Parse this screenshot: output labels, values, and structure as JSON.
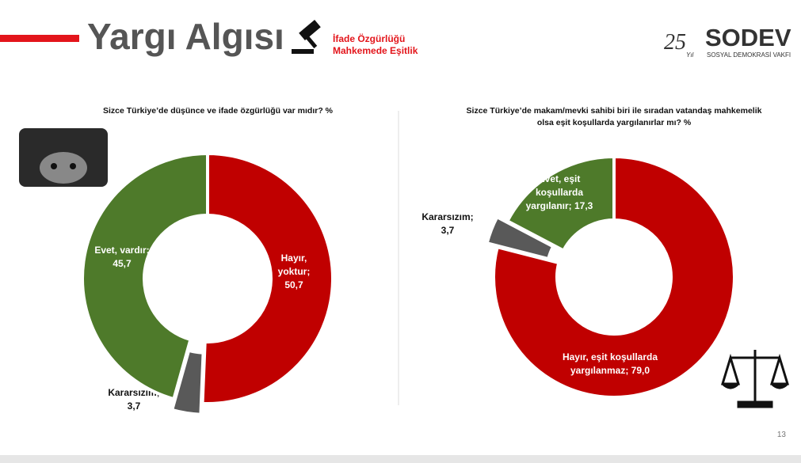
{
  "header": {
    "title": "Yargı Algısı",
    "tag1": "İfade Özgürlüğü",
    "tag2": "Mahkemede Eşitlik",
    "logo_years": "25",
    "logo_yil": "Yıl",
    "logo_name": "SODEV",
    "logo_sub": "SOSYAL DEMOKRASİ VAKFI",
    "page": "13"
  },
  "chart_data": [
    {
      "type": "pie",
      "title": "Sizce Türkiye’de düşünce ve ifade özgürlüğü var mıdır? %",
      "categories": [
        "Hayır, yoktur;",
        "Kararsızım;",
        "Evet, vardır;"
      ],
      "values": [
        50.7,
        3.7,
        45.7
      ],
      "value_labels": [
        "50,7",
        "3,7",
        "45,7"
      ],
      "colors": [
        "#c00000",
        "#595959",
        "#4e7a2a"
      ]
    },
    {
      "type": "pie",
      "title": "Sizce Türkiye’de makam/mevki sahibi biri ile sıradan vatandaş mahkemelik olsa eşit koşullarda yargılanırlar mı? %",
      "categories": [
        "Hayır, eşit koşullarda yargılanmaz;",
        "Kararsızım;",
        "Evet, eşit koşullarda yargılanır;"
      ],
      "values": [
        79.0,
        3.7,
        17.3
      ],
      "value_labels": [
        "79,0",
        "3,7",
        "17,3"
      ],
      "colors": [
        "#c00000",
        "#595959",
        "#4e7a2a"
      ]
    }
  ]
}
